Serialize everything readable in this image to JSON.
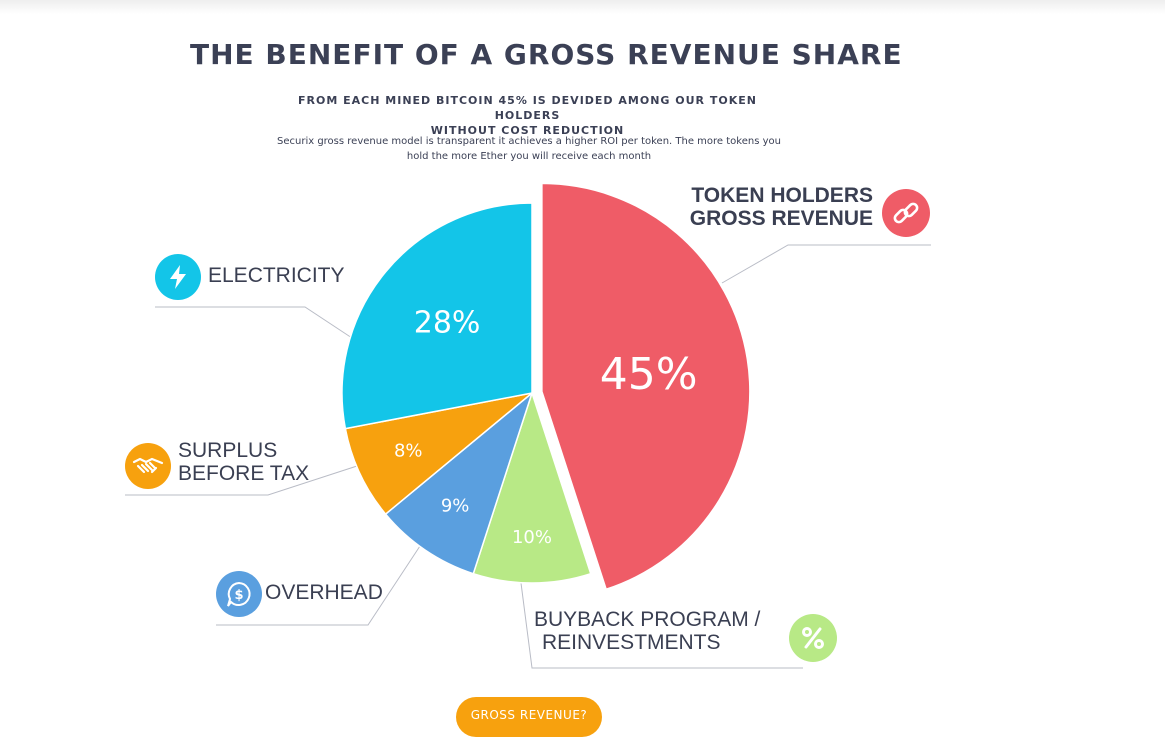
{
  "header": {
    "title": "THE BENEFIT OF A GROSS REVENUE SHARE",
    "subtitle_line1": "FROM EACH MINED BITCOIN 45% IS DEVIDED AMONG OUR TOKEN HOLDERS",
    "subtitle_line2": "WITHOUT COST REDUCTION",
    "desc_line1": "Securix gross revenue model is transparent it achieves a higher ROI per token. The more tokens you",
    "desc_line2": "hold the more Ether you will receive each month"
  },
  "labels": {
    "token_line1": "TOKEN HOLDERS",
    "token_line2": "GROSS REVENUE",
    "electricity": "ELECTRICITY",
    "surplus_line1": "SURPLUS",
    "surplus_line2": "BEFORE TAX",
    "overhead": "OVERHEAD",
    "buyback_line1": "BUYBACK PROGRAM /",
    "buyback_line2": "REINVESTMENTS"
  },
  "icons": {
    "token": "link-icon",
    "electricity": "lightning-icon",
    "surplus": "handshake-icon",
    "overhead": "dollar-chat-icon",
    "buyback": "percent-icon"
  },
  "cta": {
    "label": "GROSS REVENUE?"
  },
  "colors": {
    "token": "#ef5c67",
    "electricity": "#13c5e8",
    "surplus": "#f7a10e",
    "overhead": "#5a9fdf",
    "buyback": "#b8e986",
    "title": "#3b4055"
  },
  "chart_data": {
    "type": "pie",
    "slices": [
      {
        "value": 45,
        "label": "45%"
      },
      {
        "value": 10,
        "label": "10%"
      },
      {
        "value": 9,
        "label": "9%"
      },
      {
        "value": 8,
        "label": "8%"
      },
      {
        "value": 28,
        "label": "28%"
      }
    ]
  }
}
